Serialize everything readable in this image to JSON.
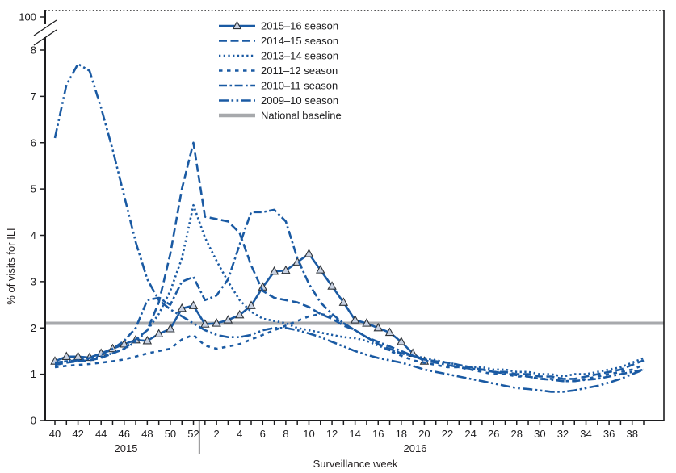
{
  "figure": {
    "y_axis_label": "% of visits for ILI",
    "x_axis_label": "Surveillance week",
    "y_top_label": "100",
    "year_labels": [
      "2015",
      "2016"
    ],
    "colors": {
      "line_blue": "#1a5aa3",
      "baseline_gray": "#a7a9ac",
      "axis_black": "#1d1d1f",
      "marker_fill": "#c9d2e2",
      "marker_stroke": "#2e3338"
    }
  },
  "chart_data": {
    "type": "line",
    "xlabel": "Surveillance week",
    "ylabel": "% of visits for ILI",
    "ylim": [
      0,
      8
    ],
    "y_ticks": [
      0,
      1,
      2,
      3,
      4,
      5,
      6,
      7,
      8
    ],
    "y_axis_break_top_label": "100",
    "x_weeks": [
      40,
      41,
      42,
      43,
      44,
      45,
      46,
      47,
      48,
      49,
      50,
      51,
      52,
      1,
      2,
      3,
      4,
      5,
      6,
      7,
      8,
      9,
      10,
      11,
      12,
      13,
      14,
      15,
      16,
      17,
      18,
      19,
      20,
      21,
      22,
      23,
      24,
      25,
      26,
      27,
      28,
      29,
      30,
      31,
      32,
      33,
      34,
      35,
      36,
      37,
      38,
      39
    ],
    "x_label_every_other": true,
    "year_split_after_week": 52,
    "grid": false,
    "legend_position": "top-center",
    "baseline_value": 2.1,
    "series": [
      {
        "name": "2015–16 season",
        "style": "solid-triangle",
        "values": [
          1.28,
          1.38,
          1.38,
          1.36,
          1.45,
          1.55,
          1.65,
          1.74,
          1.72,
          1.87,
          1.98,
          2.42,
          2.48,
          2.08,
          2.1,
          2.17,
          2.28,
          2.48,
          2.88,
          3.22,
          3.24,
          3.42,
          3.6,
          3.25,
          2.9,
          2.55,
          2.17,
          2.1,
          2.0,
          1.9,
          1.7,
          1.45,
          1.28,
          null,
          null,
          null,
          null,
          null,
          null,
          null,
          null,
          null,
          null,
          null,
          null,
          null,
          null,
          null,
          null,
          null,
          null,
          null
        ]
      },
      {
        "name": "2014–15 season",
        "style": "long-dash",
        "values": [
          1.2,
          1.25,
          1.28,
          1.3,
          1.35,
          1.45,
          1.55,
          1.75,
          1.95,
          2.55,
          3.6,
          5.0,
          6.0,
          4.4,
          4.35,
          4.3,
          4.05,
          3.35,
          2.8,
          2.65,
          2.6,
          2.55,
          2.45,
          2.3,
          2.2,
          2.05,
          1.95,
          1.8,
          1.65,
          1.55,
          1.45,
          1.4,
          1.32,
          1.28,
          1.25,
          1.2,
          1.15,
          1.1,
          1.05,
          1.05,
          1.0,
          1.0,
          0.95,
          0.95,
          0.9,
          0.9,
          0.95,
          1.0,
          1.05,
          1.1,
          1.2,
          1.3
        ]
      },
      {
        "name": "2013–14 season",
        "style": "dotted",
        "values": [
          1.25,
          1.28,
          1.3,
          1.33,
          1.38,
          1.45,
          1.55,
          1.7,
          1.95,
          2.3,
          2.8,
          3.5,
          4.65,
          3.95,
          3.45,
          3.0,
          2.6,
          2.35,
          2.2,
          2.15,
          2.1,
          2.0,
          1.95,
          1.9,
          1.85,
          1.8,
          1.78,
          1.72,
          1.62,
          1.52,
          1.45,
          1.4,
          1.35,
          1.3,
          1.25,
          1.2,
          1.15,
          1.15,
          1.1,
          1.1,
          1.05,
          1.05,
          1.0,
          1.0,
          0.95,
          1.0,
          1.0,
          1.05,
          1.1,
          1.15,
          1.25,
          1.35
        ]
      },
      {
        "name": "2011–12 season",
        "style": "short-dash",
        "values": [
          1.15,
          1.18,
          1.2,
          1.22,
          1.25,
          1.28,
          1.32,
          1.38,
          1.45,
          1.5,
          1.55,
          1.75,
          1.85,
          1.62,
          1.55,
          1.6,
          1.65,
          1.75,
          1.85,
          1.95,
          2.05,
          2.15,
          2.25,
          2.3,
          2.25,
          2.1,
          1.95,
          1.8,
          1.65,
          1.5,
          1.4,
          1.3,
          1.25,
          1.2,
          1.15,
          1.15,
          1.1,
          1.05,
          1.0,
          1.0,
          0.95,
          0.95,
          0.9,
          0.9,
          0.85,
          0.85,
          0.9,
          0.95,
          1.0,
          1.05,
          1.1,
          1.2
        ]
      },
      {
        "name": "2010–11 season",
        "style": "dash-dot",
        "values": [
          1.25,
          1.28,
          1.3,
          1.35,
          1.42,
          1.55,
          1.72,
          2.0,
          2.6,
          2.65,
          2.5,
          3.0,
          3.1,
          2.6,
          2.7,
          3.05,
          3.8,
          4.5,
          4.5,
          4.55,
          4.3,
          3.5,
          2.95,
          2.55,
          2.3,
          2.1,
          1.95,
          1.8,
          1.7,
          1.6,
          1.5,
          1.4,
          1.3,
          1.25,
          1.2,
          1.15,
          1.12,
          1.1,
          1.05,
          1.02,
          0.98,
          0.95,
          0.9,
          0.88,
          0.85,
          0.85,
          0.88,
          0.9,
          0.95,
          1.0,
          1.05,
          1.1
        ]
      },
      {
        "name": "2009–10 season",
        "style": "dash-dot-dot",
        "values": [
          6.1,
          7.25,
          7.7,
          7.55,
          6.75,
          5.85,
          4.85,
          3.85,
          3.05,
          2.6,
          2.4,
          2.25,
          2.1,
          1.95,
          1.85,
          1.8,
          1.8,
          1.85,
          1.95,
          2.0,
          2.0,
          1.95,
          1.88,
          1.8,
          1.7,
          1.6,
          1.5,
          1.42,
          1.35,
          1.3,
          1.25,
          1.18,
          1.1,
          1.05,
          1.0,
          0.95,
          0.9,
          0.85,
          0.8,
          0.75,
          0.7,
          0.68,
          0.65,
          0.62,
          0.62,
          0.65,
          0.7,
          0.75,
          0.82,
          0.9,
          1.0,
          1.1
        ]
      },
      {
        "name": "National baseline",
        "style": "baseline",
        "value": 2.1
      }
    ]
  }
}
